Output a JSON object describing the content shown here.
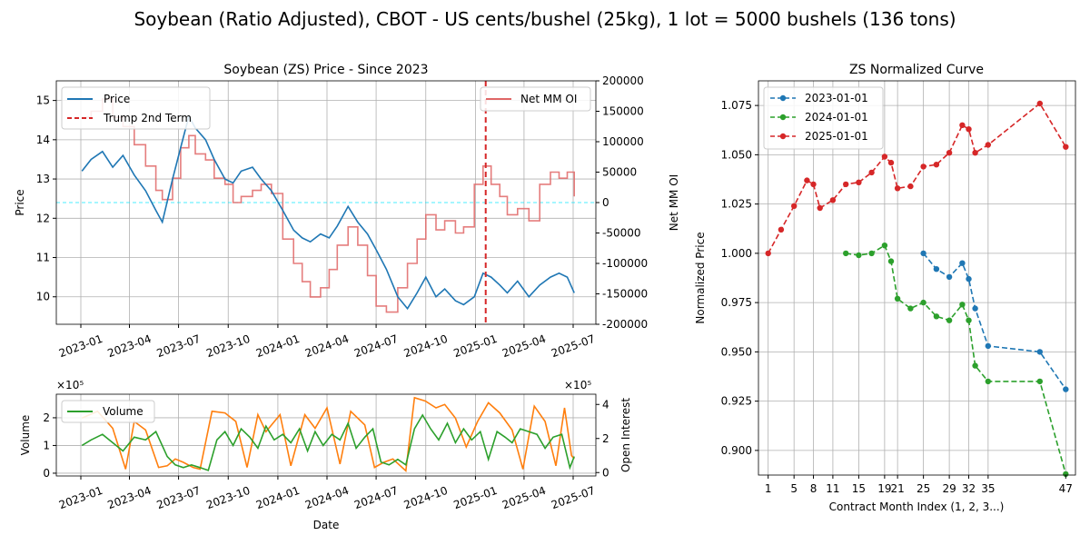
{
  "suptitle": "Soybean (Ratio Adjusted), CBOT - US cents/bushel (25kg), 1 lot = 5000 bushels (136 tons)",
  "chart_data": [
    {
      "type": "line",
      "title": "Soybean (ZS) Price - Since 2023",
      "xlabel": "",
      "ylabel": "Price",
      "y2label": "Net MM OI",
      "ylim": [
        9.3,
        15.5
      ],
      "y2lim": [
        -200000,
        200000
      ],
      "yticks": [
        10,
        11,
        12,
        13,
        14,
        15
      ],
      "y2ticks": [
        -200000,
        -150000,
        -100000,
        -50000,
        0,
        50000,
        100000,
        150000,
        200000
      ],
      "xtick_labels": [
        "2023-01",
        "2023-04",
        "2023-07",
        "2023-10",
        "2024-01",
        "2024-04",
        "2024-07",
        "2024-10",
        "2025-01",
        "2025-04",
        "2025-07"
      ],
      "grid": true,
      "legend_left": [
        "Price",
        "Trump 2nd Term"
      ],
      "legend_right": [
        "Net MM OI"
      ],
      "legend_placement": [
        "upper left",
        "upper right"
      ],
      "colors": {
        "price": "#1f77b4",
        "trump": "#d62728",
        "netmm": "#e06666",
        "zero": "#00e5ff"
      },
      "series": [
        {
          "name": "Price",
          "x": [
            "2023-01-03",
            "2023-01-20",
            "2023-02-10",
            "2023-03-01",
            "2023-03-20",
            "2023-04-10",
            "2023-05-01",
            "2023-05-20",
            "2023-06-01",
            "2023-06-20",
            "2023-07-05",
            "2023-07-20",
            "2023-08-01",
            "2023-08-20",
            "2023-09-05",
            "2023-09-25",
            "2023-10-10",
            "2023-10-25",
            "2023-11-15",
            "2023-12-01",
            "2023-12-20",
            "2024-01-10",
            "2024-01-30",
            "2024-02-15",
            "2024-03-01",
            "2024-03-20",
            "2024-04-05",
            "2024-04-20",
            "2024-05-10",
            "2024-05-28",
            "2024-06-15",
            "2024-07-01",
            "2024-07-20",
            "2024-08-10",
            "2024-08-28",
            "2024-09-15",
            "2024-10-01",
            "2024-10-20",
            "2024-11-05",
            "2024-11-25",
            "2024-12-10",
            "2024-12-30",
            "2025-01-15",
            "2025-01-30",
            "2025-02-15",
            "2025-03-01",
            "2025-03-20",
            "2025-04-10",
            "2025-04-30",
            "2025-05-20",
            "2025-06-05",
            "2025-06-20",
            "2025-07-03"
          ],
          "values": [
            13.2,
            13.5,
            13.7,
            13.3,
            13.6,
            13.1,
            12.7,
            12.2,
            11.9,
            13.0,
            13.8,
            14.6,
            14.3,
            14.0,
            13.5,
            13.0,
            12.9,
            13.2,
            13.3,
            13.0,
            12.7,
            12.2,
            11.7,
            11.5,
            11.4,
            11.6,
            11.5,
            11.8,
            12.3,
            11.9,
            11.6,
            11.2,
            10.7,
            10.0,
            9.7,
            10.1,
            10.5,
            10.0,
            10.2,
            9.9,
            9.8,
            10.0,
            10.6,
            10.5,
            10.3,
            10.1,
            10.4,
            10.0,
            10.3,
            10.5,
            10.6,
            10.5,
            10.1
          ]
        },
        {
          "name": "Net MM OI",
          "x": [
            "2023-01-03",
            "2023-01-20",
            "2023-02-10",
            "2023-03-01",
            "2023-03-20",
            "2023-04-10",
            "2023-05-01",
            "2023-05-20",
            "2023-06-01",
            "2023-06-20",
            "2023-07-05",
            "2023-07-20",
            "2023-08-01",
            "2023-08-20",
            "2023-09-05",
            "2023-09-25",
            "2023-10-10",
            "2023-10-25",
            "2023-11-15",
            "2023-12-01",
            "2023-12-20",
            "2024-01-10",
            "2024-01-30",
            "2024-02-15",
            "2024-03-01",
            "2024-03-20",
            "2024-04-05",
            "2024-04-20",
            "2024-05-10",
            "2024-05-28",
            "2024-06-15",
            "2024-07-01",
            "2024-07-20",
            "2024-08-10",
            "2024-08-28",
            "2024-09-15",
            "2024-10-01",
            "2024-10-20",
            "2024-11-05",
            "2024-11-25",
            "2024-12-10",
            "2024-12-30",
            "2025-01-15",
            "2025-01-30",
            "2025-02-15",
            "2025-03-01",
            "2025-03-20",
            "2025-04-10",
            "2025-04-30",
            "2025-05-20",
            "2025-06-05",
            "2025-06-20",
            "2025-07-03"
          ],
          "values": [
            140000,
            150000,
            170000,
            140000,
            125000,
            95000,
            60000,
            20000,
            5000,
            40000,
            90000,
            110000,
            80000,
            70000,
            40000,
            30000,
            0,
            10000,
            20000,
            30000,
            15000,
            -60000,
            -100000,
            -130000,
            -155000,
            -140000,
            -110000,
            -70000,
            -40000,
            -70000,
            -120000,
            -170000,
            -180000,
            -140000,
            -100000,
            -60000,
            -20000,
            -45000,
            -30000,
            -50000,
            -40000,
            30000,
            60000,
            30000,
            10000,
            -20000,
            -10000,
            -30000,
            30000,
            50000,
            40000,
            50000,
            10000
          ]
        }
      ],
      "vline": {
        "name": "Trump 2nd Term",
        "x": "2025-01-20"
      },
      "hline": {
        "y2": 0
      }
    },
    {
      "type": "line",
      "title": "",
      "xlabel": "Date",
      "ylabel": "Volume",
      "y2label": "Open Interest",
      "y_multiplier": "×10⁵",
      "y2_multiplier": "×10⁵",
      "ylim": [
        -0.1,
        2.85
      ],
      "y2lim": [
        -0.2,
        4.6
      ],
      "yticks": [
        0,
        1,
        2
      ],
      "y2ticks": [
        0,
        2,
        4
      ],
      "xtick_labels": [
        "2023-01",
        "2023-04",
        "2023-07",
        "2023-10",
        "2024-01",
        "2024-04",
        "2024-07",
        "2024-10",
        "2025-01",
        "2025-04",
        "2025-07"
      ],
      "grid": true,
      "legend": [
        "Volume"
      ],
      "legend_placement": "upper left",
      "colors": {
        "volume": "#2ca02c",
        "oi": "#ff7f0e"
      },
      "series": [
        {
          "name": "Volume",
          "x": [
            "2023-01-03",
            "2023-01-20",
            "2023-02-10",
            "2023-03-01",
            "2023-03-20",
            "2023-04-10",
            "2023-05-01",
            "2023-05-20",
            "2023-06-10",
            "2023-06-25",
            "2023-07-10",
            "2023-07-25",
            "2023-08-10",
            "2023-08-25",
            "2023-09-10",
            "2023-09-25",
            "2023-10-10",
            "2023-10-25",
            "2023-11-10",
            "2023-11-25",
            "2023-12-10",
            "2023-12-25",
            "2024-01-10",
            "2024-01-25",
            "2024-02-10",
            "2024-02-25",
            "2024-03-10",
            "2024-03-25",
            "2024-04-10",
            "2024-04-25",
            "2024-05-10",
            "2024-05-25",
            "2024-06-10",
            "2024-06-25",
            "2024-07-10",
            "2024-07-25",
            "2024-08-10",
            "2024-08-25",
            "2024-09-10",
            "2024-09-25",
            "2024-10-10",
            "2024-10-25",
            "2024-11-10",
            "2024-11-25",
            "2024-12-10",
            "2024-12-25",
            "2025-01-10",
            "2025-01-25",
            "2025-02-10",
            "2025-02-25",
            "2025-03-10",
            "2025-03-25",
            "2025-04-10",
            "2025-04-25",
            "2025-05-10",
            "2025-05-25",
            "2025-06-10",
            "2025-06-25",
            "2025-07-03"
          ],
          "values": [
            1.0,
            1.2,
            1.4,
            1.1,
            0.8,
            1.3,
            1.2,
            1.5,
            0.6,
            0.3,
            0.2,
            0.3,
            0.2,
            0.1,
            1.2,
            1.5,
            1.0,
            1.6,
            1.3,
            0.9,
            1.7,
            1.2,
            1.4,
            1.1,
            1.6,
            0.8,
            1.5,
            1.0,
            1.4,
            1.2,
            1.8,
            0.9,
            1.3,
            1.6,
            0.4,
            0.3,
            0.5,
            0.3,
            1.6,
            2.1,
            1.6,
            1.2,
            1.8,
            1.1,
            1.6,
            1.2,
            1.5,
            0.5,
            1.5,
            1.3,
            1.1,
            1.6,
            1.5,
            1.4,
            0.9,
            1.3,
            1.4,
            0.2,
            0.6
          ]
        },
        {
          "name": "Open Interest",
          "x": [
            "2023-01-03",
            "2023-02-01",
            "2023-03-01",
            "2023-03-25",
            "2023-04-10",
            "2023-05-01",
            "2023-05-25",
            "2023-06-10",
            "2023-06-25",
            "2023-07-10",
            "2023-07-28",
            "2023-08-10",
            "2023-09-01",
            "2023-09-25",
            "2023-10-15",
            "2023-11-05",
            "2023-11-25",
            "2023-12-10",
            "2024-01-05",
            "2024-01-25",
            "2024-02-20",
            "2024-03-10",
            "2024-04-01",
            "2024-04-25",
            "2024-05-15",
            "2024-06-10",
            "2024-06-28",
            "2024-07-15",
            "2024-08-01",
            "2024-08-25",
            "2024-09-10",
            "2024-09-30",
            "2024-10-20",
            "2024-11-05",
            "2024-11-25",
            "2024-12-15",
            "2025-01-05",
            "2025-01-25",
            "2025-02-15",
            "2025-03-10",
            "2025-03-30",
            "2025-04-20",
            "2025-05-10",
            "2025-05-30",
            "2025-06-15",
            "2025-06-28",
            "2025-07-03"
          ],
          "values": [
            3.2,
            3.6,
            2.6,
            0.2,
            3.0,
            2.5,
            0.3,
            0.4,
            0.8,
            0.6,
            0.3,
            0.2,
            3.6,
            3.5,
            3.0,
            0.3,
            3.4,
            2.4,
            3.4,
            0.4,
            3.4,
            2.6,
            3.8,
            0.5,
            3.6,
            2.8,
            0.3,
            0.6,
            0.8,
            0.1,
            4.4,
            4.2,
            3.8,
            4.0,
            3.2,
            1.5,
            3.0,
            4.1,
            3.5,
            2.5,
            0.2,
            3.9,
            3.0,
            0.4,
            3.8,
            1.0,
            0.8
          ]
        }
      ]
    },
    {
      "type": "line",
      "title": "ZS Normalized Curve",
      "xlabel": "Contract Month Index (1, 2, 3...)",
      "ylabel": "Normalized Price",
      "xlim": [
        -0.5,
        48.5
      ],
      "ylim": [
        0.8875,
        1.0875
      ],
      "xticks": [
        1,
        5,
        8,
        11,
        15,
        19,
        21,
        25,
        29,
        32,
        35,
        47
      ],
      "xtick_labels": [
        "1",
        "5",
        "8",
        "11",
        "15",
        "19",
        "21",
        "25",
        "29",
        "32",
        "35",
        "47"
      ],
      "yticks": [
        0.9,
        0.925,
        0.95,
        0.975,
        1.0,
        1.025,
        1.05,
        1.075
      ],
      "ytick_labels": [
        "0.900",
        "0.925",
        "0.950",
        "0.975",
        "1.000",
        "1.025",
        "1.050",
        "1.075"
      ],
      "grid": true,
      "legend_placement": "upper left",
      "series": [
        {
          "name": "2023-01-01",
          "color": "#1f77b4",
          "x": [
            25,
            27,
            29,
            31,
            32,
            33,
            35,
            43,
            47
          ],
          "values": [
            1.0,
            0.992,
            0.988,
            0.995,
            0.987,
            0.972,
            0.953,
            0.95,
            0.931
          ]
        },
        {
          "name": "2024-01-01",
          "color": "#2ca02c",
          "x": [
            13,
            15,
            17,
            19,
            20,
            21,
            23,
            25,
            27,
            29,
            31,
            32,
            33,
            35,
            43,
            47
          ],
          "values": [
            1.0,
            0.999,
            1.0,
            1.004,
            0.996,
            0.977,
            0.972,
            0.975,
            0.968,
            0.966,
            0.974,
            0.966,
            0.943,
            0.935,
            0.935,
            0.888
          ]
        },
        {
          "name": "2025-01-01",
          "color": "#d62728",
          "x": [
            1,
            3,
            5,
            7,
            8,
            9,
            11,
            13,
            15,
            17,
            19,
            20,
            21,
            23,
            25,
            27,
            29,
            31,
            32,
            33,
            35,
            43,
            47
          ],
          "values": [
            1.0,
            1.012,
            1.024,
            1.037,
            1.035,
            1.023,
            1.027,
            1.035,
            1.036,
            1.041,
            1.049,
            1.046,
            1.033,
            1.034,
            1.044,
            1.045,
            1.051,
            1.065,
            1.063,
            1.051,
            1.055,
            1.076,
            1.054
          ]
        }
      ]
    }
  ]
}
